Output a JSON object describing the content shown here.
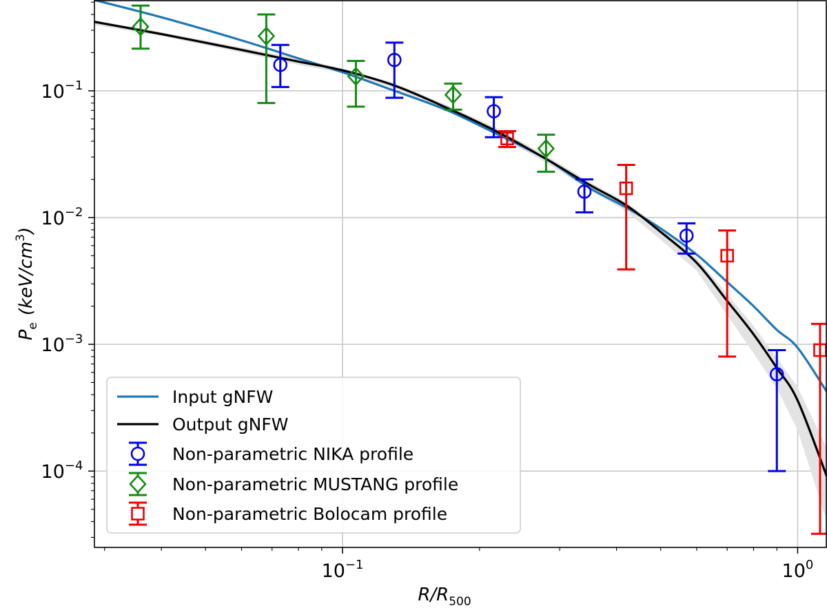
{
  "chart_data": {
    "type": "line",
    "xscale": "log",
    "yscale": "log",
    "xlim": [
      0.0285,
      1.16
    ],
    "ylim": [
      2.5e-05,
      0.52
    ],
    "xlabel": {
      "main": "R/R",
      "sub": "500"
    },
    "ylabel": {
      "var": "P",
      "sub": "e",
      "units": "(keV/cm",
      "units_sup": "3",
      "units_close": ")"
    },
    "x_ticks": [
      {
        "value": 0.1,
        "base": "10",
        "exp": "−1"
      },
      {
        "value": 1.0,
        "base": "10",
        "exp": "0"
      }
    ],
    "y_ticks": [
      {
        "value": 0.1,
        "base": "10",
        "exp": "−1"
      },
      {
        "value": 0.01,
        "base": "10",
        "exp": "−2"
      },
      {
        "value": 0.001,
        "base": "10",
        "exp": "−3"
      },
      {
        "value": 0.0001,
        "base": "10",
        "exp": "−4"
      }
    ],
    "grid": true,
    "legend_position": "lower-left",
    "series": [
      {
        "name": "Input gNFW",
        "kind": "line",
        "color": "#1f77b4",
        "x": [
          0.0285,
          0.04,
          0.06,
          0.08,
          0.1,
          0.13,
          0.17,
          0.22,
          0.28,
          0.35,
          0.42,
          0.5,
          0.6,
          0.7,
          0.8,
          0.9,
          1.0,
          1.16
        ],
        "y": [
          0.52,
          0.38,
          0.25,
          0.18,
          0.14,
          0.1,
          0.07,
          0.045,
          0.029,
          0.017,
          0.012,
          0.0082,
          0.0051,
          0.0031,
          0.002,
          0.0013,
          0.00094,
          0.00042
        ]
      },
      {
        "name": "Output gNFW",
        "kind": "line",
        "color": "#000000",
        "x": [
          0.0285,
          0.04,
          0.06,
          0.08,
          0.1,
          0.13,
          0.17,
          0.22,
          0.28,
          0.35,
          0.42,
          0.5,
          0.6,
          0.7,
          0.8,
          0.9,
          1.0,
          1.16
        ],
        "y": [
          0.35,
          0.28,
          0.21,
          0.17,
          0.145,
          0.11,
          0.073,
          0.047,
          0.029,
          0.018,
          0.0125,
          0.0077,
          0.0044,
          0.0022,
          0.0012,
          0.00065,
          0.00036,
          9e-05
        ],
        "band_upper": [
          0.36,
          0.29,
          0.22,
          0.18,
          0.15,
          0.115,
          0.077,
          0.05,
          0.031,
          0.019,
          0.0132,
          0.0083,
          0.0048,
          0.0025,
          0.0014,
          0.00078,
          0.00046,
          0.00015
        ],
        "band_lower": [
          0.33,
          0.27,
          0.2,
          0.16,
          0.138,
          0.105,
          0.069,
          0.044,
          0.027,
          0.0165,
          0.0112,
          0.0067,
          0.0038,
          0.0017,
          0.00085,
          0.00045,
          0.00021,
          4e-05
        ]
      },
      {
        "name": "Non-parametric NIKA profile",
        "kind": "errorbar",
        "marker": "circle",
        "color": "#0000ee",
        "points": [
          {
            "x": 0.073,
            "y": 0.16,
            "lo": 0.107,
            "hi": 0.23
          },
          {
            "x": 0.13,
            "y": 0.175,
            "lo": 0.088,
            "hi": 0.24
          },
          {
            "x": 0.215,
            "y": 0.069,
            "lo": 0.043,
            "hi": 0.089
          },
          {
            "x": 0.34,
            "y": 0.016,
            "lo": 0.011,
            "hi": 0.02
          },
          {
            "x": 0.57,
            "y": 0.0072,
            "lo": 0.0052,
            "hi": 0.009
          },
          {
            "x": 0.9,
            "y": 0.00058,
            "lo": 0.0001,
            "hi": 0.0009
          }
        ]
      },
      {
        "name": "Non-parametric MUSTANG profile",
        "kind": "errorbar",
        "marker": "diamond",
        "color": "#138a13",
        "points": [
          {
            "x": 0.036,
            "y": 0.32,
            "lo": 0.215,
            "hi": 0.47
          },
          {
            "x": 0.068,
            "y": 0.27,
            "lo": 0.08,
            "hi": 0.4
          },
          {
            "x": 0.107,
            "y": 0.13,
            "lo": 0.075,
            "hi": 0.172
          },
          {
            "x": 0.175,
            "y": 0.093,
            "lo": 0.071,
            "hi": 0.114
          },
          {
            "x": 0.28,
            "y": 0.035,
            "lo": 0.023,
            "hi": 0.045
          }
        ]
      },
      {
        "name": "Non-parametric Bolocam profile",
        "kind": "errorbar",
        "marker": "square",
        "color": "#ee0000",
        "points": [
          {
            "x": 0.23,
            "y": 0.042,
            "lo": 0.036,
            "hi": 0.048
          },
          {
            "x": 0.42,
            "y": 0.017,
            "lo": 0.0039,
            "hi": 0.026
          },
          {
            "x": 0.7,
            "y": 0.005,
            "lo": 0.0008,
            "hi": 0.0079
          },
          {
            "x": 1.12,
            "y": 0.0009,
            "lo": 3.2e-05,
            "hi": 0.00145
          }
        ]
      }
    ]
  }
}
